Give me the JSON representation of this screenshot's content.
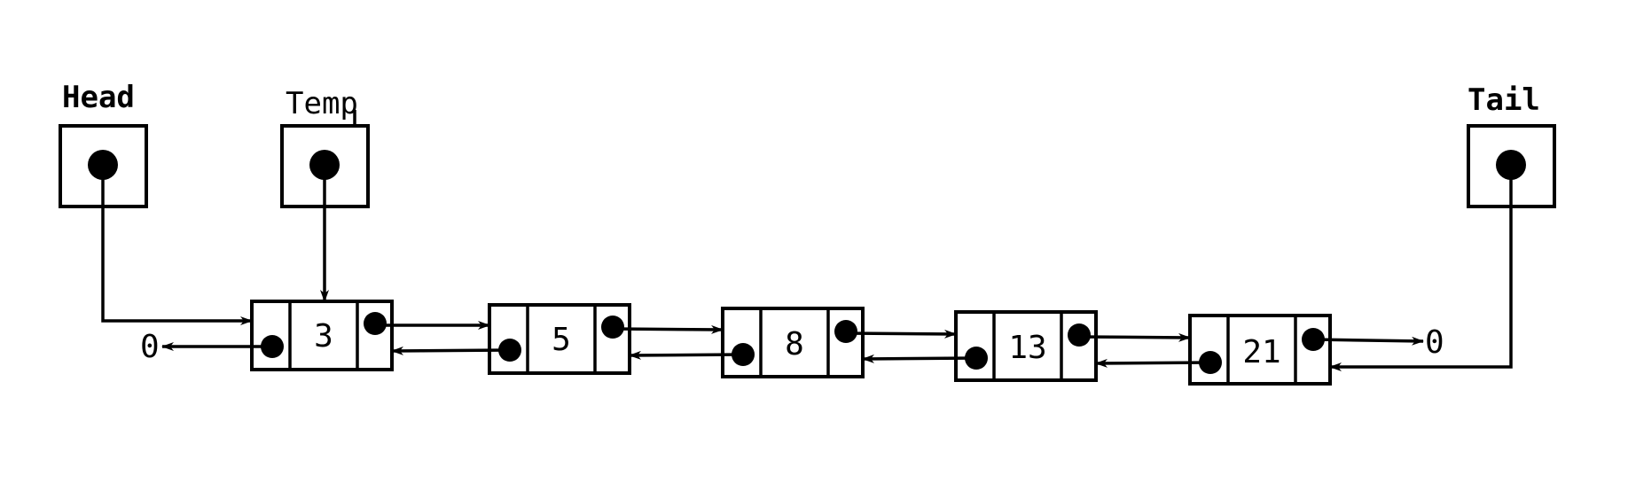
{
  "pointers": {
    "head": "Head",
    "temp": "Temp",
    "tail": "Tail"
  },
  "nodes": [
    "3",
    "5",
    "8",
    "13",
    "21"
  ],
  "null_left": "0",
  "null_right": "0"
}
